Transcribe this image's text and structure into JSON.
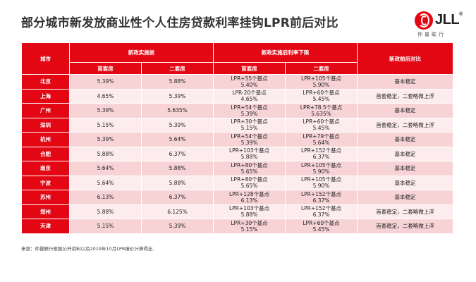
{
  "title": "部分城市新发放商业性个人住房贷款利率挂钩LPR前后对比",
  "logo": {
    "name": "JLL",
    "sub": "仲量联行"
  },
  "table": {
    "headers": {
      "city": "城市",
      "before_group": "新政实施前",
      "after_group": "新政实施后利率下限",
      "compare": "新政前后对比",
      "first_home": "首套房",
      "second_home": "二套房"
    },
    "rows": [
      {
        "city": "北京",
        "before_first": "5.39%",
        "before_second": "5.88%",
        "after_first_a": "LPR+55个基点",
        "after_first_b": "5.40%",
        "after_second_a": "LPR+105个基点",
        "after_second_b": "5.90%",
        "compare": "基本稳定"
      },
      {
        "city": "上海",
        "before_first": "4.65%",
        "before_second": "5.39%",
        "after_first_a": "LPR-20个基点",
        "after_first_b": "4.65%",
        "after_second_a": "LPR+60个基点",
        "after_second_b": "5.45%",
        "compare": "首套稳定，二套略微上浮"
      },
      {
        "city": "广州",
        "before_first": "5.39%",
        "before_second": "5.635%",
        "after_first_a": "LPR+54个基点",
        "after_first_b": "5.39%",
        "after_second_a": "LPR+78.5个基点",
        "after_second_b": "5.635%",
        "compare": "基本稳定"
      },
      {
        "city": "深圳",
        "before_first": "5.15%",
        "before_second": "5.39%",
        "after_first_a": "LPR+30个基点",
        "after_first_b": "5.15%",
        "after_second_a": "LPR+60个基点",
        "after_second_b": "5.45%",
        "compare": "首套稳定，二套略微上浮"
      },
      {
        "city": "杭州",
        "before_first": "5.39%",
        "before_second": "5.64%",
        "after_first_a": "LPR+54个基点",
        "after_first_b": "5.39%",
        "after_second_a": "LPR+79个基点",
        "after_second_b": "5.64%",
        "compare": "基本稳定"
      },
      {
        "city": "合肥",
        "before_first": "5.88%",
        "before_second": "6.37%",
        "after_first_a": "LPR+103个基点",
        "after_first_b": "5.88%",
        "after_second_a": "LPR+152个基点",
        "after_second_b": "6.37%",
        "compare": "基本稳定"
      },
      {
        "city": "南京",
        "before_first": "5.64%",
        "before_second": "5.88%",
        "after_first_a": "LPR+80个基点",
        "after_first_b": "5.65%",
        "after_second_a": "LPR+105个基点",
        "after_second_b": "5.90%",
        "compare": "基本稳定"
      },
      {
        "city": "宁波",
        "before_first": "5.64%",
        "before_second": "5.88%",
        "after_first_a": "LPR+80个基点",
        "after_first_b": "5.65%",
        "after_second_a": "LPR+105个基点",
        "after_second_b": "5.90%",
        "compare": "基本稳定"
      },
      {
        "city": "苏州",
        "before_first": "6.13%",
        "before_second": "6.37%",
        "after_first_a": "LPR+128个基点",
        "after_first_b": "6.13%",
        "after_second_a": "LPR+152个基点",
        "after_second_b": "6.37%",
        "compare": "基本稳定"
      },
      {
        "city": "郑州",
        "before_first": "5.88%",
        "before_second": "6.125%",
        "after_first_a": "LPR+103个基点",
        "after_first_b": "5.88%",
        "after_second_a": "LPR+152个基点",
        "after_second_b": "6.37%",
        "compare": "首套稳定，二套略微上浮"
      },
      {
        "city": "天津",
        "before_first": "5.15%",
        "before_second": "5.39%",
        "after_first_a": "LPR+30个基点",
        "after_first_b": "5.15%",
        "after_second_a": "LPR+60个基点",
        "after_second_b": "5.45%",
        "compare": "首套稳定，二套略微上浮"
      }
    ]
  },
  "source": "来源：仲量联行根据公开资料以及2019年10月LPR报价计算得出.",
  "colors": {
    "brand_red": "#e30613",
    "row_dark": "#f7d3d6",
    "row_light": "#fceced"
  }
}
